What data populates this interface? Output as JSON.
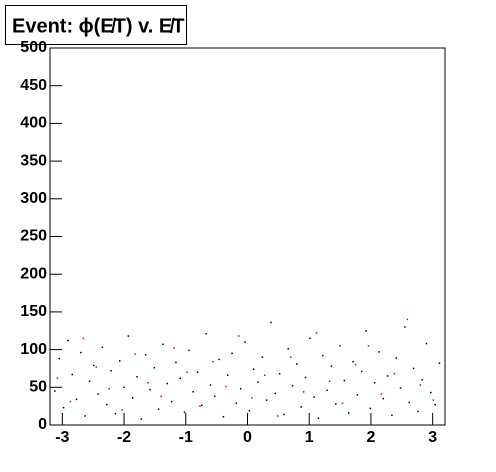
{
  "chart_data": {
    "type": "scatter",
    "title": "Event: ϕ(E̸T) v. E̸T",
    "xlim": [
      -3.2,
      3.2
    ],
    "xticks": [
      -3,
      -2,
      -1,
      0,
      1,
      2,
      3
    ],
    "ylim": [
      0,
      500
    ],
    "yticks": [
      0,
      50,
      100,
      150,
      200,
      250,
      300,
      350,
      400,
      450,
      500
    ],
    "series": [
      {
        "color": "#000000",
        "x": [
          -3.12,
          -3.05,
          -2.98,
          -2.91,
          -2.84,
          -2.77,
          -2.7,
          -2.63,
          -2.56,
          -2.49,
          -2.42,
          -2.35,
          -2.28,
          -2.21,
          -2.14,
          -2.07,
          -2.0,
          -1.93,
          -1.86,
          -1.79,
          -1.72,
          -1.65,
          -1.58,
          -1.51,
          -1.44,
          -1.37,
          -1.3,
          -1.23,
          -1.16,
          -1.09,
          -1.02,
          -0.95,
          -0.88,
          -0.81,
          -0.74,
          -0.67,
          -0.6,
          -0.53,
          -0.46,
          -0.39,
          -0.32,
          -0.25,
          -0.18,
          -0.11,
          -0.04,
          0.03,
          0.1,
          0.17,
          0.24,
          0.31,
          0.38,
          0.45,
          0.52,
          0.59,
          0.66,
          0.73,
          0.8,
          0.87,
          0.94,
          1.01,
          1.08,
          1.15,
          1.22,
          1.29,
          1.36,
          1.43,
          1.5,
          1.57,
          1.64,
          1.71,
          1.78,
          1.85,
          1.92,
          1.99,
          2.06,
          2.13,
          2.2,
          2.27,
          2.34,
          2.41,
          2.48,
          2.55,
          2.62,
          2.69,
          2.76,
          2.83,
          2.9,
          2.97,
          3.04,
          3.11
        ],
        "values": [
          45,
          88,
          23,
          112,
          67,
          34,
          96,
          12,
          58,
          79,
          41,
          103,
          27,
          72,
          15,
          85,
          50,
          118,
          36,
          64,
          8,
          93,
          47,
          76,
          21,
          107,
          55,
          31,
          83,
          62,
          17,
          99,
          44,
          70,
          26,
          121,
          53,
          38,
          87,
          11,
          66,
          95,
          29,
          48,
          110,
          19,
          74,
          57,
          90,
          33,
          136,
          42,
          68,
          14,
          101,
          52,
          81,
          24,
          63,
          115,
          37,
          9,
          92,
          46,
          78,
          28,
          105,
          59,
          16,
          84,
          40,
          71,
          125,
          22,
          56,
          97,
          35,
          65,
          13,
          89,
          49,
          130,
          30,
          75,
          18,
          60,
          108,
          43,
          27,
          82
        ]
      },
      {
        "color": "#ff0000",
        "x": [
          -3.08,
          -2.87,
          -2.66,
          -2.45,
          -2.24,
          -2.03,
          -1.82,
          -1.61,
          -1.4,
          -1.19,
          -0.98,
          -0.77,
          -0.56,
          -0.35,
          -0.14,
          0.07,
          0.28,
          0.49,
          0.7,
          0.91,
          1.12,
          1.33,
          1.54,
          1.75,
          1.96,
          2.17,
          2.38,
          2.59,
          2.8,
          3.01
        ],
        "values": [
          62,
          31,
          115,
          77,
          48,
          20,
          94,
          56,
          38,
          102,
          70,
          25,
          84,
          51,
          118,
          36,
          66,
          12,
          90,
          44,
          122,
          58,
          29,
          80,
          105,
          41,
          68,
          140,
          53,
          33
        ]
      }
    ]
  }
}
